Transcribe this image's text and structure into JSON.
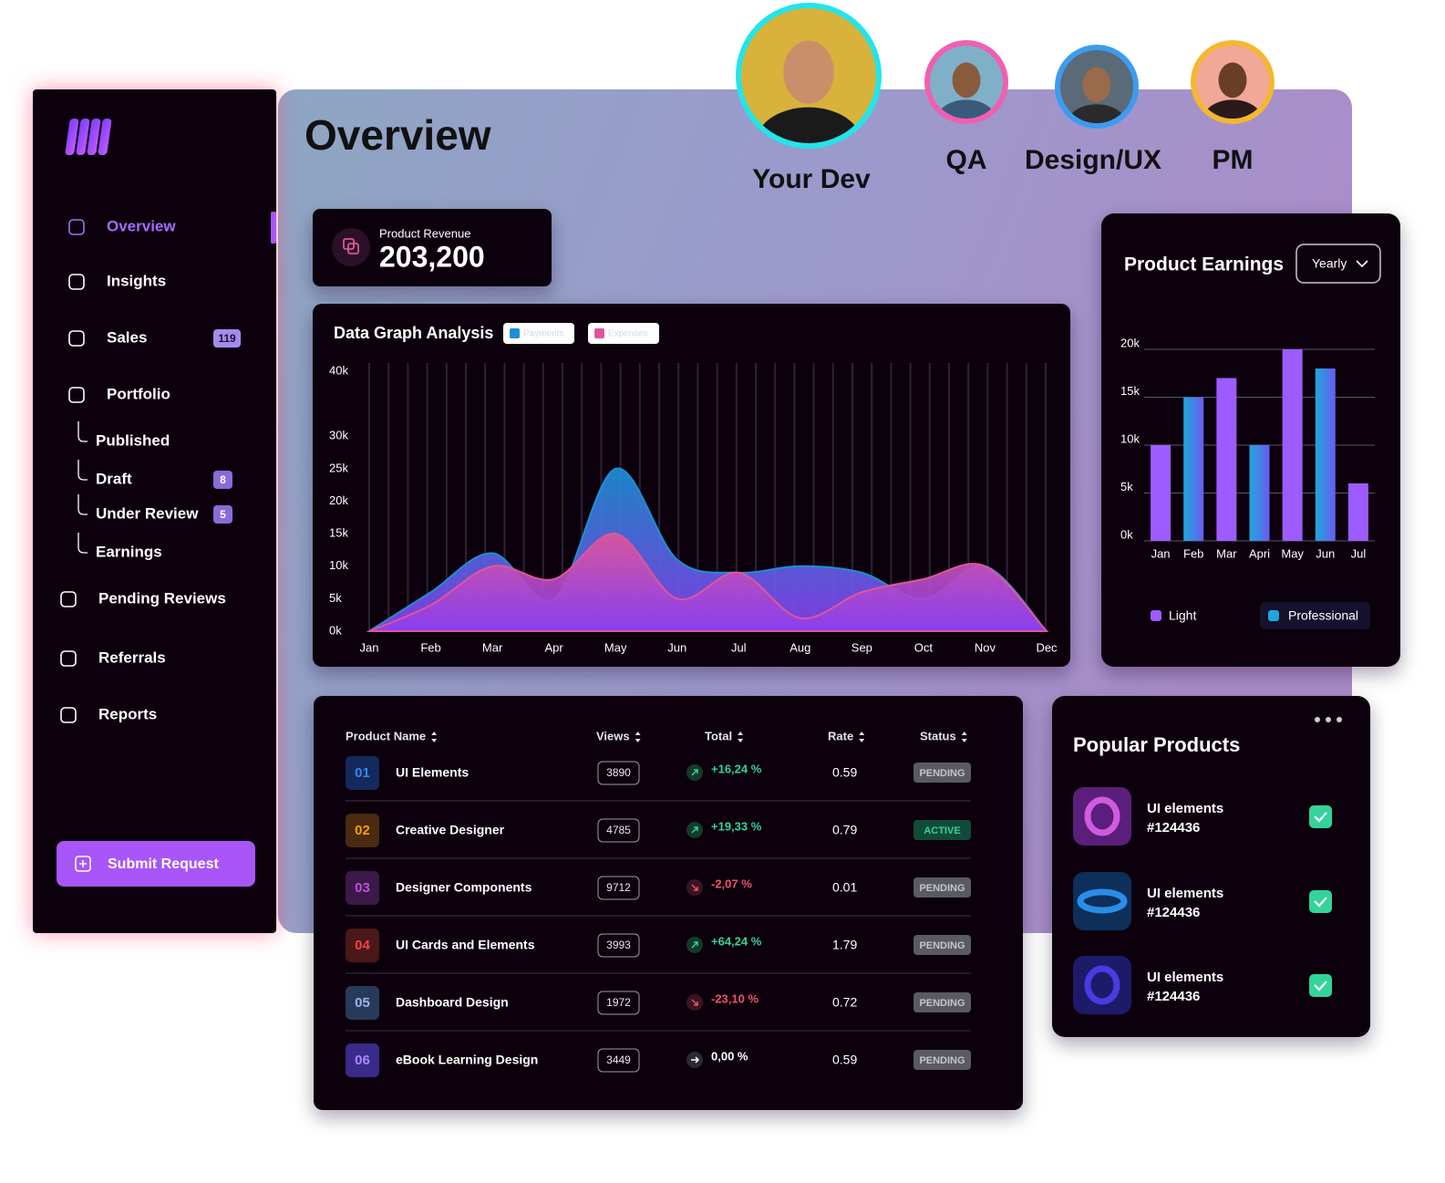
{
  "sidebar": {
    "nav": [
      {
        "label": "Overview"
      },
      {
        "label": "Insights"
      },
      {
        "label": "Sales",
        "badge": 119
      },
      {
        "label": "Portfolio",
        "children": [
          {
            "label": "Published"
          },
          {
            "label": "Draft",
            "badge": 8
          },
          {
            "label": "Under Review",
            "badge": 5
          },
          {
            "label": "Earnings"
          }
        ]
      },
      {
        "label": "Pending Reviews"
      },
      {
        "label": "Referrals"
      },
      {
        "label": "Reports"
      }
    ],
    "button": "Submit Request"
  },
  "header": {
    "title": "Overview"
  },
  "team": [
    "Your Dev",
    "QA",
    "Design/UX",
    "PM"
  ],
  "revenue": {
    "label": "Product Revenue",
    "value": "203,200"
  },
  "chart_data": [
    {
      "type": "area",
      "title": "Data Graph Analysis",
      "categories": [
        "Jan",
        "Feb",
        "Mar",
        "Apr",
        "May",
        "Jun",
        "Jul",
        "Aug",
        "Sep",
        "Oct",
        "Nov",
        "Dec"
      ],
      "series": [
        {
          "name": "Payments",
          "color": "#1d8fd6",
          "values": [
            0,
            6,
            12,
            5,
            25,
            11,
            9,
            10,
            9,
            5,
            10,
            0
          ]
        },
        {
          "name": "Expenses",
          "color": "#e0559a",
          "values": [
            0,
            4,
            10,
            8,
            15,
            5,
            9,
            2,
            6,
            8,
            10,
            0
          ]
        }
      ],
      "ylim": [
        0,
        40
      ],
      "yticks": [
        {
          "value": 0,
          "label": "0k"
        },
        {
          "value": 5,
          "label": "5k"
        },
        {
          "value": 10,
          "label": "10k"
        },
        {
          "value": 15,
          "label": "15k"
        },
        {
          "value": 20,
          "label": "20k"
        },
        {
          "value": 25,
          "label": "25k"
        },
        {
          "value": 30,
          "label": "30k"
        },
        {
          "value": 40,
          "label": "40k"
        }
      ]
    },
    {
      "type": "bar",
      "title": "Product Earnings",
      "control": "Yearly",
      "categories": [
        "Jan",
        "Feb",
        "Mar",
        "Apri",
        "May",
        "Jun",
        "Jul"
      ],
      "series": [
        {
          "name": "Light",
          "color": "#9d5cff",
          "values": [
            10,
            null,
            17,
            null,
            20,
            null,
            6
          ]
        },
        {
          "name": "Professional",
          "color": "#1ea7dc",
          "values": [
            null,
            15,
            null,
            10,
            null,
            18,
            null
          ]
        }
      ],
      "ylim": [
        0,
        20
      ],
      "yticks": [
        {
          "value": 0,
          "label": "0k"
        },
        {
          "value": 5,
          "label": "5k"
        },
        {
          "value": 10,
          "label": "10k"
        },
        {
          "value": 15,
          "label": "15k"
        },
        {
          "value": 20,
          "label": "20k"
        }
      ],
      "grid": true
    }
  ],
  "table": {
    "columns": [
      "Product Name",
      "Views",
      "Total",
      "Rate",
      "Status"
    ],
    "rows": [
      [
        "01",
        "UI Elements",
        3890,
        "+16,24 %",
        0.59,
        "PENDING"
      ],
      [
        "02",
        "Creative Designer",
        4785,
        "+19,33 %",
        0.79,
        "ACTIVE"
      ],
      [
        "03",
        "Designer Components",
        9712,
        "-2,07 %",
        0.01,
        "PENDING"
      ],
      [
        "04",
        "UI Cards and Elements",
        3993,
        "+64,24 %",
        1.79,
        "PENDING"
      ],
      [
        "05",
        "Dashboard Design",
        1972,
        "-23,10 %",
        0.72,
        "PENDING"
      ],
      [
        "06",
        "eBook Learning Design",
        3449,
        "0,00 %",
        0.59,
        "PENDING"
      ]
    ]
  },
  "popular": {
    "title": "Popular Products",
    "items": [
      {
        "name": "UI elements",
        "id": "#124436"
      },
      {
        "name": "UI elements",
        "id": "#124436"
      },
      {
        "name": "UI elements",
        "id": "#124436"
      }
    ]
  }
}
